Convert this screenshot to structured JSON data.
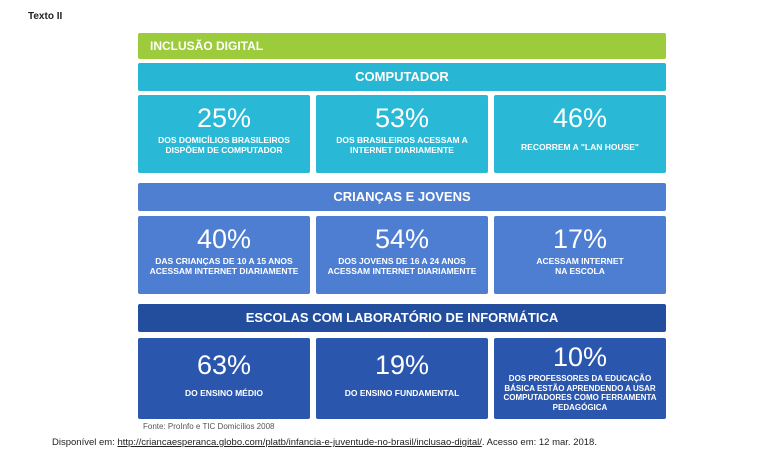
{
  "label": "Texto II",
  "title": "INCLUSÃO DIGITAL",
  "sections": [
    {
      "heading": "COMPUTADOR",
      "stats": [
        {
          "value": "25%",
          "desc": "DOS DOMICÍLIOS BRASILEIROS DISPÕEM DE COMPUTADOR"
        },
        {
          "value": "53%",
          "desc": "DOS BRASILEIROS ACESSAM A INTERNET DIARIAMENTE"
        },
        {
          "value": "46%",
          "desc": "RECORREM A \"LAN HOUSE\""
        }
      ]
    },
    {
      "heading": "CRIANÇAS E JOVENS",
      "stats": [
        {
          "value": "40%",
          "desc": "DAS CRIANÇAS DE 10 A 15 ANOS ACESSAM INTERNET DIARIAMENTE"
        },
        {
          "value": "54%",
          "desc": "DOS JOVENS DE 16 A 24 ANOS ACESSAM INTERNET DIARIAMENTE"
        },
        {
          "value": "17%",
          "desc": "ACESSAM INTERNET NA ESCOLA"
        }
      ]
    },
    {
      "heading": "ESCOLAS COM LABORATÓRIO DE INFORMÁTICA",
      "stats": [
        {
          "value": "63%",
          "desc": "DO ENSINO MÉDIO"
        },
        {
          "value": "19%",
          "desc": "DO ENSINO FUNDAMENTAL"
        },
        {
          "value": "10%",
          "desc": "DOS PROFESSORES DA EDUCAÇÃO BÁSICA ESTÃO APRENDENDO A USAR COMPUTADORES COMO FERRAMENTA PEDAGÓGICA"
        }
      ]
    }
  ],
  "source": "Fonte: ProInfo e TIC Domicílios 2008",
  "citation": {
    "prefix": "Disponível em: ",
    "url": "http://criancaesperanca.globo.com/platb/infancia-e-juventude-no-brasil/inclusao-digital/",
    "suffix": ". Acesso em: 12 mar. 2018."
  },
  "colors": {
    "title_bar": "#9ccb3b",
    "section_1": "#27b6d3",
    "section_2": "#4f7fd1",
    "section_3": "#234e9e"
  }
}
